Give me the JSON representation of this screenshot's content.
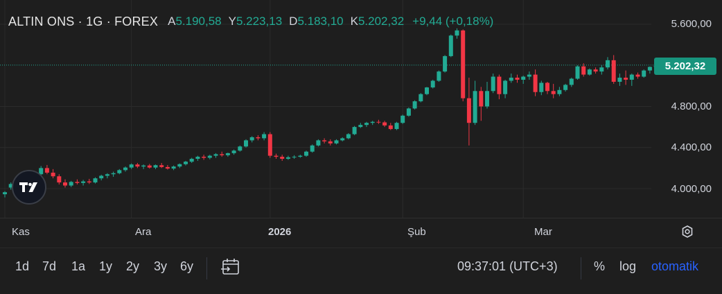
{
  "header": {
    "symbol": "ALTIN ONS · 1G · FOREX",
    "open_label": "A",
    "open_value": "5.190,58",
    "high_label": "Y",
    "high_value": "5.223,13",
    "low_label": "D",
    "low_value": "5.183,10",
    "close_label": "K",
    "close_value": "5.202,32",
    "change": "+9,44 (+0,18%)"
  },
  "last_price_label": "5.202,32",
  "colors": {
    "up": "#22ab94",
    "down": "#f23645",
    "background": "#1e1e1e",
    "accent": "#2962ff"
  },
  "chart_data": {
    "type": "candlestick",
    "last_price": 5202.32,
    "ylim": [
      3800,
      5680
    ],
    "yticks": [
      4000,
      4400,
      4800,
      5600
    ],
    "ytick_labels": [
      "4.000,00",
      "4.400,00",
      "4.800,00",
      "5.600,00"
    ],
    "xtick_labels": [
      {
        "label": "Kas",
        "bar": 0
      },
      {
        "label": "Ara",
        "bar": 21
      },
      {
        "label": "2026",
        "bar": 44
      },
      {
        "label": "Şub",
        "bar": 66
      },
      {
        "label": "Mar",
        "bar": 86
      }
    ],
    "candles": [
      [
        3945,
        3975,
        3915,
        3965
      ],
      [
        4010,
        4060,
        3990,
        4045
      ],
      [
        4045,
        4085,
        4010,
        4060
      ],
      [
        4060,
        4095,
        4030,
        4075
      ],
      [
        4075,
        4130,
        4055,
        4110
      ],
      [
        4110,
        4160,
        4090,
        4140
      ],
      [
        4140,
        4220,
        4120,
        4200
      ],
      [
        4200,
        4230,
        4140,
        4155
      ],
      [
        4155,
        4190,
        4100,
        4120
      ],
      [
        4120,
        4140,
        4040,
        4060
      ],
      [
        4060,
        4090,
        4010,
        4030
      ],
      [
        4030,
        4075,
        4015,
        4065
      ],
      [
        4065,
        4090,
        4040,
        4055
      ],
      [
        4055,
        4085,
        4030,
        4070
      ],
      [
        4070,
        4095,
        4045,
        4060
      ],
      [
        4060,
        4110,
        4050,
        4100
      ],
      [
        4100,
        4135,
        4080,
        4125
      ],
      [
        4125,
        4150,
        4100,
        4140
      ],
      [
        4140,
        4165,
        4115,
        4150
      ],
      [
        4150,
        4190,
        4140,
        4180
      ],
      [
        4180,
        4215,
        4165,
        4205
      ],
      [
        4205,
        4245,
        4190,
        4235
      ],
      [
        4235,
        4250,
        4200,
        4215
      ],
      [
        4215,
        4235,
        4190,
        4225
      ],
      [
        4225,
        4240,
        4195,
        4205
      ],
      [
        4205,
        4235,
        4190,
        4228
      ],
      [
        4228,
        4250,
        4200,
        4210
      ],
      [
        4210,
        4230,
        4185,
        4195
      ],
      [
        4195,
        4225,
        4180,
        4215
      ],
      [
        4215,
        4245,
        4200,
        4238
      ],
      [
        4238,
        4270,
        4225,
        4262
      ],
      [
        4262,
        4300,
        4250,
        4290
      ],
      [
        4290,
        4320,
        4270,
        4310
      ],
      [
        4310,
        4330,
        4280,
        4300
      ],
      [
        4300,
        4330,
        4285,
        4320
      ],
      [
        4320,
        4345,
        4300,
        4335
      ],
      [
        4335,
        4360,
        4310,
        4325
      ],
      [
        4325,
        4350,
        4310,
        4345
      ],
      [
        4345,
        4380,
        4330,
        4370
      ],
      [
        4370,
        4420,
        4360,
        4410
      ],
      [
        4410,
        4480,
        4400,
        4470
      ],
      [
        4470,
        4510,
        4450,
        4500
      ],
      [
        4500,
        4520,
        4470,
        4490
      ],
      [
        4490,
        4550,
        4470,
        4530
      ],
      [
        4530,
        4550,
        4300,
        4320
      ],
      [
        4320,
        4340,
        4290,
        4310
      ],
      [
        4310,
        4330,
        4270,
        4290
      ],
      [
        4290,
        4320,
        4280,
        4305
      ],
      [
        4305,
        4325,
        4290,
        4310
      ],
      [
        4310,
        4330,
        4300,
        4320
      ],
      [
        4320,
        4370,
        4310,
        4360
      ],
      [
        4360,
        4430,
        4350,
        4420
      ],
      [
        4420,
        4480,
        4410,
        4470
      ],
      [
        4470,
        4490,
        4440,
        4460
      ],
      [
        4460,
        4480,
        4420,
        4440
      ],
      [
        4440,
        4480,
        4430,
        4470
      ],
      [
        4470,
        4500,
        4460,
        4490
      ],
      [
        4490,
        4540,
        4480,
        4530
      ],
      [
        4530,
        4610,
        4520,
        4600
      ],
      [
        4600,
        4640,
        4590,
        4620
      ],
      [
        4620,
        4650,
        4600,
        4640
      ],
      [
        4640,
        4660,
        4620,
        4650
      ],
      [
        4650,
        4670,
        4630,
        4645
      ],
      [
        4645,
        4660,
        4600,
        4615
      ],
      [
        4615,
        4640,
        4570,
        4580
      ],
      [
        4580,
        4650,
        4570,
        4640
      ],
      [
        4640,
        4720,
        4630,
        4710
      ],
      [
        4710,
        4790,
        4700,
        4780
      ],
      [
        4780,
        4860,
        4770,
        4850
      ],
      [
        4850,
        4930,
        4840,
        4920
      ],
      [
        4920,
        4990,
        4910,
        4985
      ],
      [
        4985,
        5060,
        4975,
        5050
      ],
      [
        5050,
        5150,
        5040,
        5140
      ],
      [
        5140,
        5300,
        5130,
        5290
      ],
      [
        5290,
        5500,
        5280,
        5490
      ],
      [
        5490,
        5560,
        5460,
        5540
      ],
      [
        5540,
        5550,
        4850,
        4880
      ],
      [
        4880,
        5080,
        4420,
        4640
      ],
      [
        4640,
        5050,
        4620,
        4950
      ],
      [
        4950,
        4990,
        4660,
        4800
      ],
      [
        4800,
        5040,
        4780,
        4950
      ],
      [
        4950,
        5120,
        4930,
        5090
      ],
      [
        5090,
        5110,
        4870,
        4920
      ],
      [
        4920,
        5060,
        4880,
        5050
      ],
      [
        5050,
        5120,
        5030,
        5080
      ],
      [
        5080,
        5110,
        5030,
        5060
      ],
      [
        5060,
        5100,
        5020,
        5090
      ],
      [
        5090,
        5140,
        5060,
        5110
      ],
      [
        5110,
        5160,
        4900,
        4940
      ],
      [
        4940,
        5050,
        4910,
        5030
      ],
      [
        5030,
        5040,
        4920,
        4950
      ],
      [
        4950,
        5020,
        4880,
        4920
      ],
      [
        4920,
        4990,
        4900,
        4960
      ],
      [
        4960,
        5020,
        4945,
        5010
      ],
      [
        5010,
        5080,
        4990,
        5070
      ],
      [
        5070,
        5200,
        5060,
        5190
      ],
      [
        5190,
        5220,
        5090,
        5110
      ],
      [
        5110,
        5170,
        5100,
        5160
      ],
      [
        5160,
        5180,
        5120,
        5140
      ],
      [
        5140,
        5200,
        5110,
        5180
      ],
      [
        5180,
        5280,
        5160,
        5250
      ],
      [
        5250,
        5300,
        5020,
        5040
      ],
      [
        5040,
        5120,
        5000,
        5080
      ],
      [
        5080,
        5150,
        5010,
        5060
      ],
      [
        5060,
        5120,
        5000,
        5110
      ],
      [
        5110,
        5130,
        5070,
        5090
      ],
      [
        5090,
        5160,
        5080,
        5150
      ],
      [
        5150,
        5190,
        5120,
        5185
      ],
      [
        5185,
        5215,
        5170,
        5195
      ]
    ]
  },
  "toolbar": {
    "ranges": [
      "1d",
      "7d",
      "1a",
      "1y",
      "2y",
      "3y",
      "6y"
    ],
    "clock": "09:37:01 (UTC+3)",
    "percent_label": "%",
    "log_label": "log",
    "auto_label": "otomatik"
  },
  "icons": {
    "logo": "tradingview-logo",
    "settings": "gear-icon",
    "goto": "goto-date-icon"
  }
}
